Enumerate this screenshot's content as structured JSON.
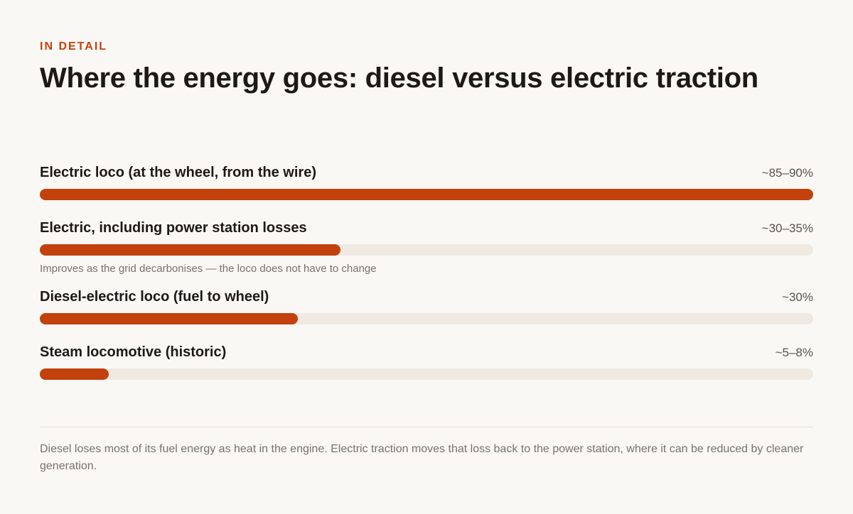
{
  "chart_data": {
    "type": "bar",
    "kicker": "IN DETAIL",
    "title": "Where the energy goes: diesel versus electric traction",
    "categories": [
      "Electric loco (at the wheel, from the wire)",
      "Electric, including power station losses",
      "Diesel-electric loco (fuel to wheel)",
      "Steam locomotive (historic)"
    ],
    "values": [
      90,
      35,
      30,
      8
    ],
    "value_labels": [
      "~85–90%",
      "~30–35%",
      "~30%",
      "~5–8%"
    ],
    "notes": [
      null,
      "Improves as the grid decarbonises — the loco does not have to change",
      null,
      null
    ],
    "xlim": [
      0,
      90
    ],
    "color": "#c2410c",
    "track_color": "#efe9e1",
    "footnote": "Diesel loses most of its fuel energy as heat in the engine. Electric traction moves that loss back to the power station, where it can be reduced by cleaner generation."
  }
}
